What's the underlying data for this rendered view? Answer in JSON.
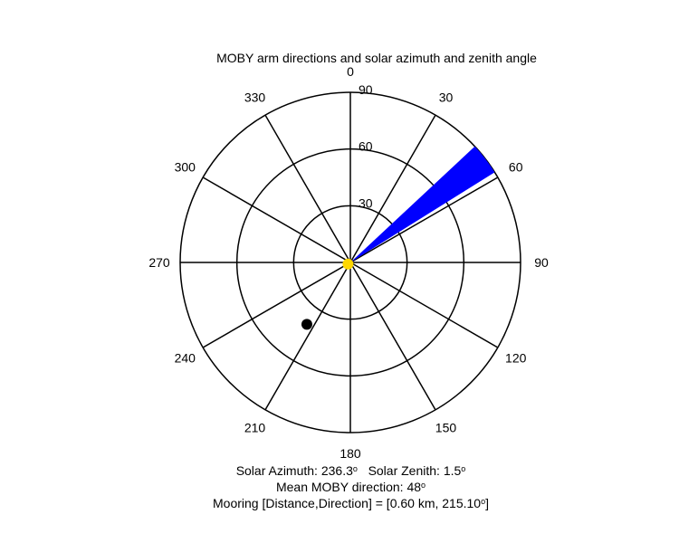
{
  "chart_data": {
    "type": "polar",
    "title": "MOBY arm directions and solar azimuth and zenith angle",
    "azimuth_ticks": [
      0,
      30,
      60,
      90,
      120,
      150,
      180,
      210,
      240,
      270,
      300,
      330
    ],
    "radial_ticks": [
      30,
      60,
      90
    ],
    "radial_max": 90,
    "grid": true,
    "series": [
      {
        "kind": "sector",
        "color": "#0000ff",
        "az_start": 47,
        "az_end": 58,
        "r_start": 0,
        "r_end": 90
      },
      {
        "kind": "point",
        "color": "#000000",
        "azimuth": 215.1,
        "radius": 40
      },
      {
        "kind": "point",
        "color": "#ffd700",
        "azimuth": 236.3,
        "radius": 1.5
      }
    ]
  },
  "captions": {
    "solar_azimuth_label": "Solar Azimuth: 236.3",
    "solar_zenith_label": "Solar Zenith: 1.5",
    "mean_direction_label": "Mean MOBY direction: 48",
    "mooring_label": "Mooring [Distance,Direction] = [0.60 km, 215.10",
    "mooring_close": "]",
    "degree_symbol": "o"
  }
}
